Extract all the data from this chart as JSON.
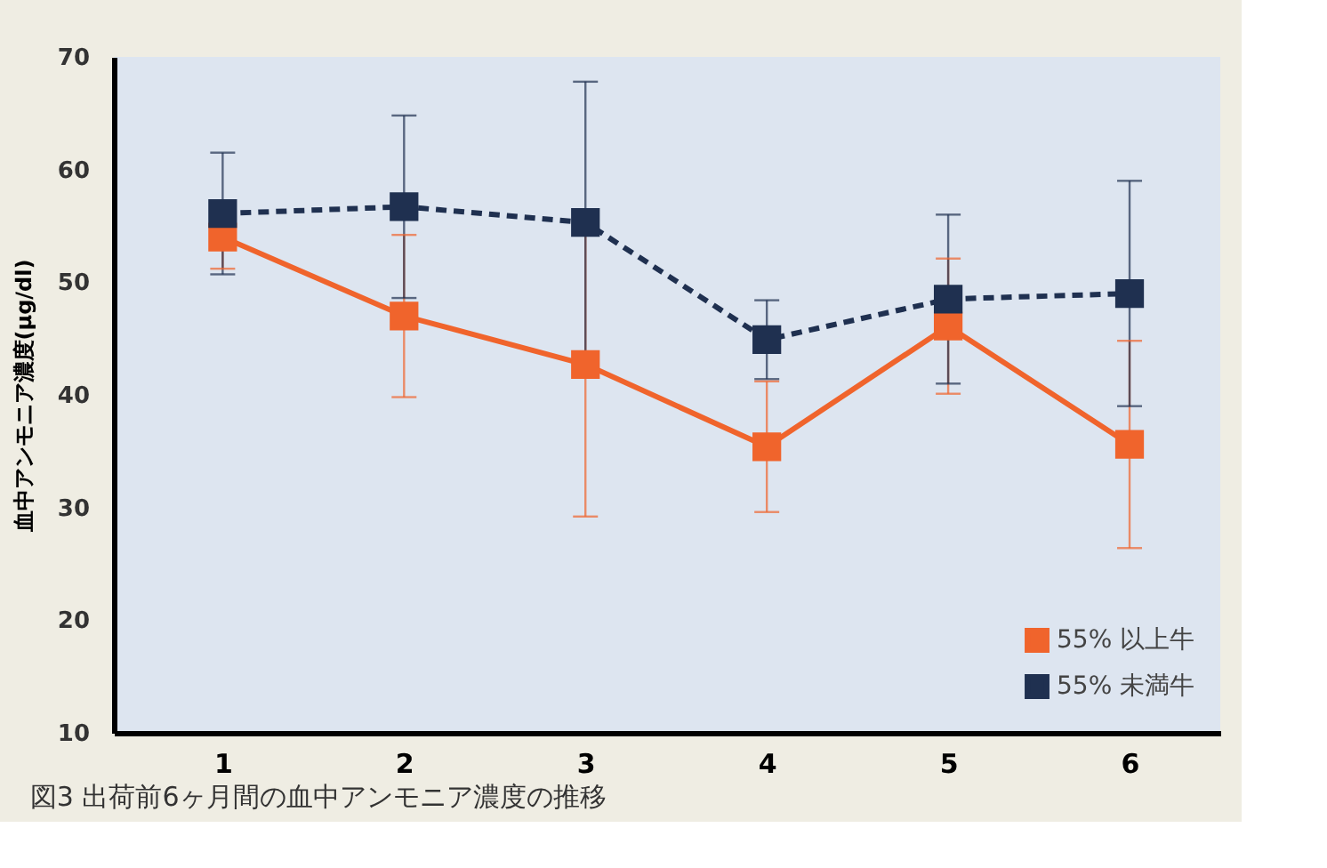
{
  "chart_data": {
    "type": "line",
    "title": "図3 出荷前6ヶ月間の血中アンモニア濃度の推移",
    "ylabel": "血中アンモニア濃度(μg/dl)",
    "categories": [
      "1",
      "2",
      "3",
      "4",
      "5",
      "6"
    ],
    "series": [
      {
        "name": "55% 以上牛",
        "color": "#f0642c",
        "values": [
          54.0,
          47.0,
          42.7,
          35.4,
          46.1,
          35.6
        ],
        "errors": [
          2.8,
          7.2,
          13.5,
          5.8,
          6.0,
          9.2
        ],
        "line_style": "solid"
      },
      {
        "name": "55% 未満牛",
        "color": "#1f3050",
        "values": [
          56.1,
          56.7,
          55.3,
          44.9,
          48.5,
          49.0
        ],
        "errors": [
          5.4,
          8.1,
          12.5,
          3.5,
          7.5,
          10.0
        ],
        "line_style": "dashed"
      }
    ],
    "ylim": [
      10,
      70
    ],
    "yticks": [
      10,
      20,
      30,
      40,
      50,
      60,
      70
    ],
    "grid": false,
    "legend": "bottom right",
    "marker": "square"
  }
}
